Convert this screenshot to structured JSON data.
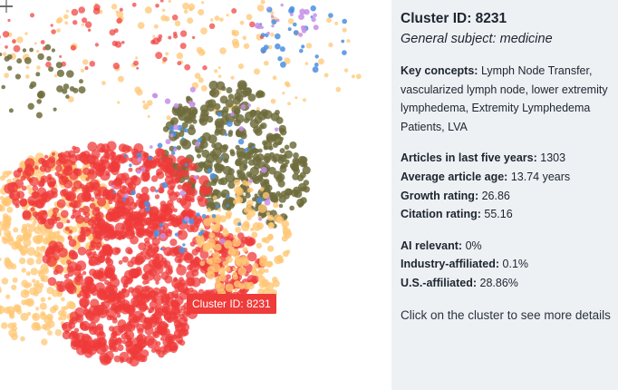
{
  "panel": {
    "cluster_title": "Cluster ID: 8231",
    "subject_label": "General subject:",
    "subject_value": "medicine",
    "key_concepts_label": "Key concepts:",
    "key_concepts_value": "Lymph Node Transfer, vascularized lymph node, lower extremity lymphedema, Extremity Lymphedema Patients, LVA",
    "stats": [
      {
        "label": "Articles in last five years:",
        "value": "1303"
      },
      {
        "label": "Average article age:",
        "value": "13.74 years"
      },
      {
        "label": "Growth rating:",
        "value": "26.86"
      },
      {
        "label": "Citation rating:",
        "value": "55.16"
      }
    ],
    "affiliations": [
      {
        "label": "AI relevant:",
        "value": "0%"
      },
      {
        "label": "Industry-affiliated:",
        "value": "0.1%"
      },
      {
        "label": "U.S.-affiliated:",
        "value": "28.86%"
      }
    ],
    "hint": "Click on the cluster to see more details"
  },
  "tooltip": {
    "text": "Cluster ID: 8231"
  },
  "colors": {
    "panel_bg": "#eef1f4",
    "highlight_red": "#ef3b39",
    "light_orange": "#ffc774",
    "olive": "#6f6c3c",
    "blue": "#4a8fe0",
    "purple": "#c58fe6",
    "tooltip_bg": "#ef3b39"
  },
  "icons": {
    "cursor": "crosshair-cursor-icon"
  }
}
